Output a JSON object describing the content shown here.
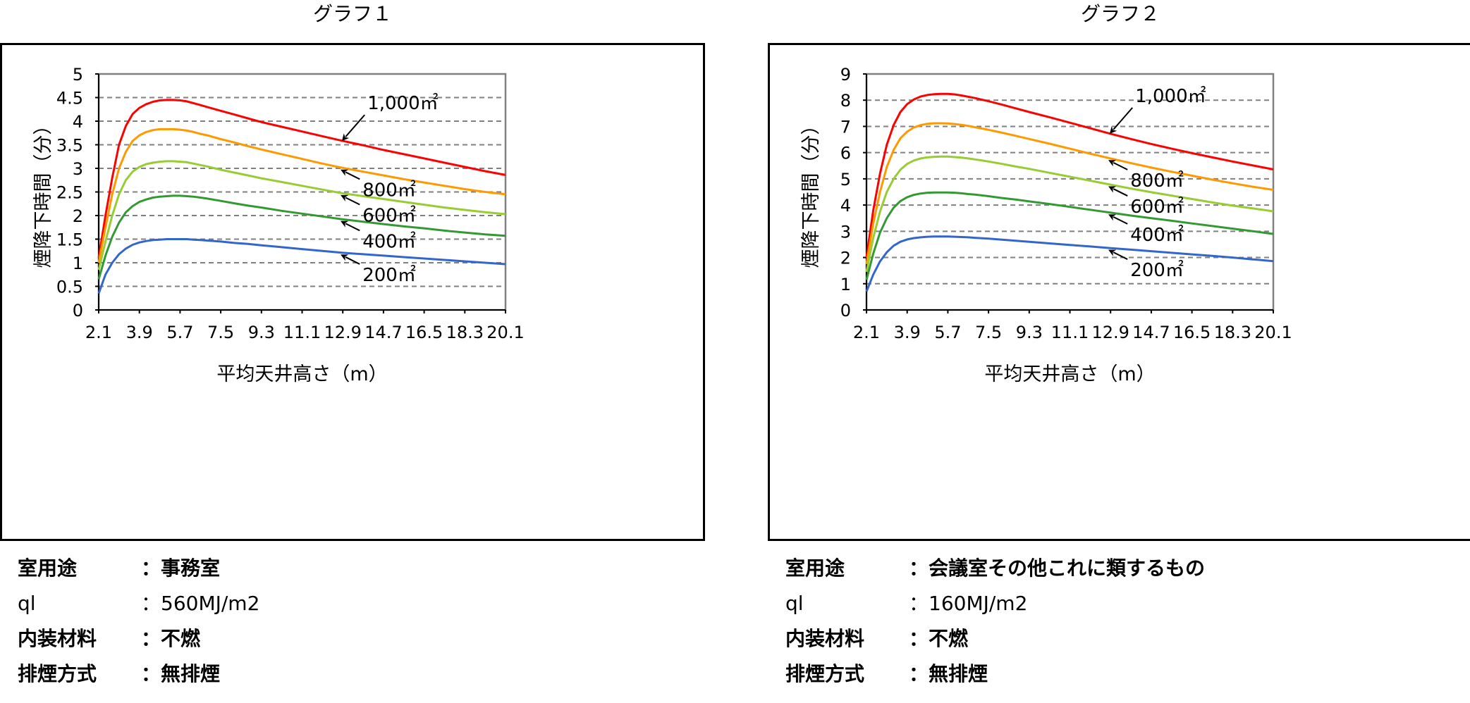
{
  "charts": [
    {
      "title": "グラフ１",
      "info": [
        {
          "label": "室用途",
          "value": "：事務室"
        },
        {
          "label": "ql",
          "value": "：560MJ/m2"
        },
        {
          "label": "内装材料",
          "value": "：不燃"
        },
        {
          "label": "排煙方式",
          "value": "：無排煙"
        }
      ]
    },
    {
      "title": "グラフ２",
      "info": [
        {
          "label": "室用途",
          "value": "：会議室その他これに類するもの"
        },
        {
          "label": "ql",
          "value": "：160MJ/m2"
        },
        {
          "label": "内装材料",
          "value": "：不燃"
        },
        {
          "label": "排煙方式",
          "value": "：無排煙"
        }
      ]
    }
  ],
  "chart_data": [
    {
      "type": "line",
      "xlabel": "平均天井高さ（m）",
      "ylabel": "煙降下時間（分）",
      "x_ticks": [
        "2.1",
        "3.9",
        "5.7",
        "7.5",
        "9.3",
        "11.1",
        "12.9",
        "14.7",
        "16.5",
        "18.3",
        "20.1"
      ],
      "xlim": [
        2.1,
        20.1
      ],
      "y_ticks": [
        "0",
        "0.5",
        "1",
        "1.5",
        "2",
        "2.5",
        "3",
        "3.5",
        "4",
        "4.5",
        "5"
      ],
      "ylim": [
        0,
        5
      ],
      "grid": "horizontal-dashed",
      "x": [
        2.1,
        2.4,
        2.7,
        3.0,
        3.3,
        3.6,
        3.9,
        4.2,
        4.5,
        4.8,
        5.1,
        5.4,
        5.7,
        6.0,
        6.3,
        6.6,
        6.9,
        7.5,
        8.1,
        8.7,
        9.3,
        10.2,
        11.1,
        12.0,
        12.9,
        13.8,
        14.7,
        15.6,
        16.5,
        17.4,
        18.3,
        19.2,
        20.1
      ],
      "series": [
        {
          "name": "1,000㎡",
          "color": "#ff0000",
          "values": [
            1.1,
            2.0,
            2.8,
            3.5,
            3.9,
            4.15,
            4.28,
            4.36,
            4.41,
            4.44,
            4.45,
            4.45,
            4.44,
            4.42,
            4.38,
            4.34,
            4.3,
            4.22,
            4.14,
            4.06,
            3.98,
            3.88,
            3.78,
            3.68,
            3.58,
            3.49,
            3.39,
            3.3,
            3.21,
            3.12,
            3.03,
            2.94,
            2.86
          ]
        },
        {
          "name": "800㎡",
          "color": "#ff9900",
          "values": [
            1.0,
            1.75,
            2.45,
            3.0,
            3.35,
            3.58,
            3.7,
            3.77,
            3.81,
            3.83,
            3.83,
            3.83,
            3.82,
            3.8,
            3.77,
            3.73,
            3.7,
            3.62,
            3.55,
            3.47,
            3.4,
            3.3,
            3.2,
            3.1,
            3.01,
            2.93,
            2.85,
            2.77,
            2.7,
            2.63,
            2.56,
            2.5,
            2.45
          ]
        },
        {
          "name": "600㎡",
          "color": "#99cc33",
          "values": [
            0.85,
            1.45,
            2.0,
            2.45,
            2.75,
            2.93,
            3.03,
            3.09,
            3.12,
            3.14,
            3.15,
            3.15,
            3.14,
            3.13,
            3.1,
            3.07,
            3.04,
            2.97,
            2.91,
            2.85,
            2.79,
            2.71,
            2.63,
            2.55,
            2.47,
            2.41,
            2.35,
            2.29,
            2.23,
            2.17,
            2.12,
            2.07,
            2.03
          ]
        },
        {
          "name": "400㎡",
          "color": "#339933",
          "values": [
            0.65,
            1.15,
            1.55,
            1.85,
            2.07,
            2.2,
            2.29,
            2.34,
            2.38,
            2.4,
            2.41,
            2.42,
            2.42,
            2.41,
            2.4,
            2.38,
            2.36,
            2.31,
            2.26,
            2.21,
            2.17,
            2.1,
            2.04,
            1.98,
            1.92,
            1.87,
            1.82,
            1.77,
            1.73,
            1.68,
            1.64,
            1.6,
            1.57
          ]
        },
        {
          "name": "200㎡",
          "color": "#3366cc",
          "values": [
            0.35,
            0.75,
            1.0,
            1.18,
            1.3,
            1.38,
            1.43,
            1.46,
            1.48,
            1.49,
            1.5,
            1.5,
            1.5,
            1.5,
            1.49,
            1.48,
            1.47,
            1.45,
            1.42,
            1.4,
            1.37,
            1.33,
            1.29,
            1.25,
            1.21,
            1.18,
            1.15,
            1.12,
            1.09,
            1.06,
            1.03,
            1.0,
            0.97
          ]
        }
      ],
      "annotations": [
        {
          "text": "1,000㎡",
          "series": "1,000㎡",
          "x": 12.9,
          "y": 3.58
        },
        {
          "text": "800㎡",
          "series": "800㎡",
          "x": 12.9,
          "y": 3.01
        },
        {
          "text": "600㎡",
          "series": "600㎡",
          "x": 12.9,
          "y": 2.47
        },
        {
          "text": "400㎡",
          "series": "400㎡",
          "x": 12.9,
          "y": 1.92
        },
        {
          "text": "200㎡",
          "series": "200㎡",
          "x": 12.9,
          "y": 1.21
        }
      ]
    },
    {
      "type": "line",
      "xlabel": "平均天井高さ（m）",
      "ylabel": "煙降下時間（分）",
      "x_ticks": [
        "2.1",
        "3.9",
        "5.7",
        "7.5",
        "9.3",
        "11.1",
        "12.9",
        "14.7",
        "16.5",
        "18.3",
        "20.1"
      ],
      "xlim": [
        2.1,
        20.1
      ],
      "y_ticks": [
        "0",
        "1",
        "2",
        "3",
        "4",
        "5",
        "6",
        "7",
        "8",
        "9"
      ],
      "ylim": [
        0,
        9
      ],
      "grid": "horizontal-dashed",
      "x": [
        2.1,
        2.4,
        2.7,
        3.0,
        3.3,
        3.6,
        3.9,
        4.2,
        4.5,
        4.8,
        5.1,
        5.4,
        5.7,
        6.0,
        6.3,
        6.6,
        6.9,
        7.5,
        8.1,
        8.7,
        9.3,
        10.2,
        11.1,
        12.0,
        12.9,
        13.8,
        14.7,
        15.6,
        16.5,
        17.4,
        18.3,
        19.2,
        20.1
      ],
      "series": [
        {
          "name": "1,000㎡",
          "color": "#ff0000",
          "values": [
            2.0,
            3.8,
            5.2,
            6.3,
            7.05,
            7.55,
            7.85,
            8.03,
            8.14,
            8.2,
            8.23,
            8.24,
            8.24,
            8.22,
            8.18,
            8.13,
            8.08,
            7.96,
            7.83,
            7.69,
            7.55,
            7.35,
            7.14,
            6.93,
            6.72,
            6.52,
            6.33,
            6.15,
            5.98,
            5.82,
            5.66,
            5.51,
            5.36
          ]
        },
        {
          "name": "800㎡",
          "color": "#ff9900",
          "values": [
            1.75,
            3.3,
            4.5,
            5.45,
            6.1,
            6.55,
            6.8,
            6.96,
            7.05,
            7.1,
            7.12,
            7.12,
            7.11,
            7.09,
            7.06,
            7.02,
            6.97,
            6.87,
            6.76,
            6.64,
            6.52,
            6.34,
            6.15,
            5.96,
            5.78,
            5.6,
            5.43,
            5.27,
            5.12,
            4.97,
            4.83,
            4.7,
            4.58
          ]
        },
        {
          "name": "600㎡",
          "color": "#99cc33",
          "values": [
            1.45,
            2.75,
            3.75,
            4.5,
            5.0,
            5.35,
            5.57,
            5.7,
            5.78,
            5.82,
            5.84,
            5.85,
            5.85,
            5.83,
            5.81,
            5.78,
            5.74,
            5.66,
            5.57,
            5.47,
            5.38,
            5.23,
            5.08,
            4.93,
            4.78,
            4.63,
            4.49,
            4.36,
            4.23,
            4.1,
            3.98,
            3.87,
            3.76
          ]
        },
        {
          "name": "400㎡",
          "color": "#339933",
          "values": [
            1.15,
            2.15,
            2.95,
            3.5,
            3.9,
            4.15,
            4.3,
            4.39,
            4.44,
            4.47,
            4.48,
            4.48,
            4.48,
            4.47,
            4.45,
            4.42,
            4.4,
            4.34,
            4.27,
            4.21,
            4.14,
            4.04,
            3.93,
            3.82,
            3.71,
            3.6,
            3.5,
            3.4,
            3.3,
            3.2,
            3.1,
            3.0,
            2.9
          ]
        },
        {
          "name": "200㎡",
          "color": "#3366cc",
          "values": [
            0.7,
            1.35,
            1.85,
            2.2,
            2.45,
            2.6,
            2.69,
            2.74,
            2.77,
            2.79,
            2.8,
            2.8,
            2.8,
            2.79,
            2.78,
            2.77,
            2.75,
            2.72,
            2.68,
            2.64,
            2.6,
            2.54,
            2.48,
            2.42,
            2.36,
            2.3,
            2.24,
            2.18,
            2.12,
            2.06,
            2.0,
            1.93,
            1.86
          ]
        }
      ],
      "annotations": [
        {
          "text": "1,000㎡",
          "series": "1,000㎡",
          "x": 12.9,
          "y": 6.72
        },
        {
          "text": "800㎡",
          "series": "800㎡",
          "x": 12.9,
          "y": 5.78
        },
        {
          "text": "600㎡",
          "series": "600㎡",
          "x": 12.9,
          "y": 4.78
        },
        {
          "text": "400㎡",
          "series": "400㎡",
          "x": 12.9,
          "y": 3.71
        },
        {
          "text": "200㎡",
          "series": "200㎡",
          "x": 12.9,
          "y": 2.36
        }
      ]
    }
  ]
}
